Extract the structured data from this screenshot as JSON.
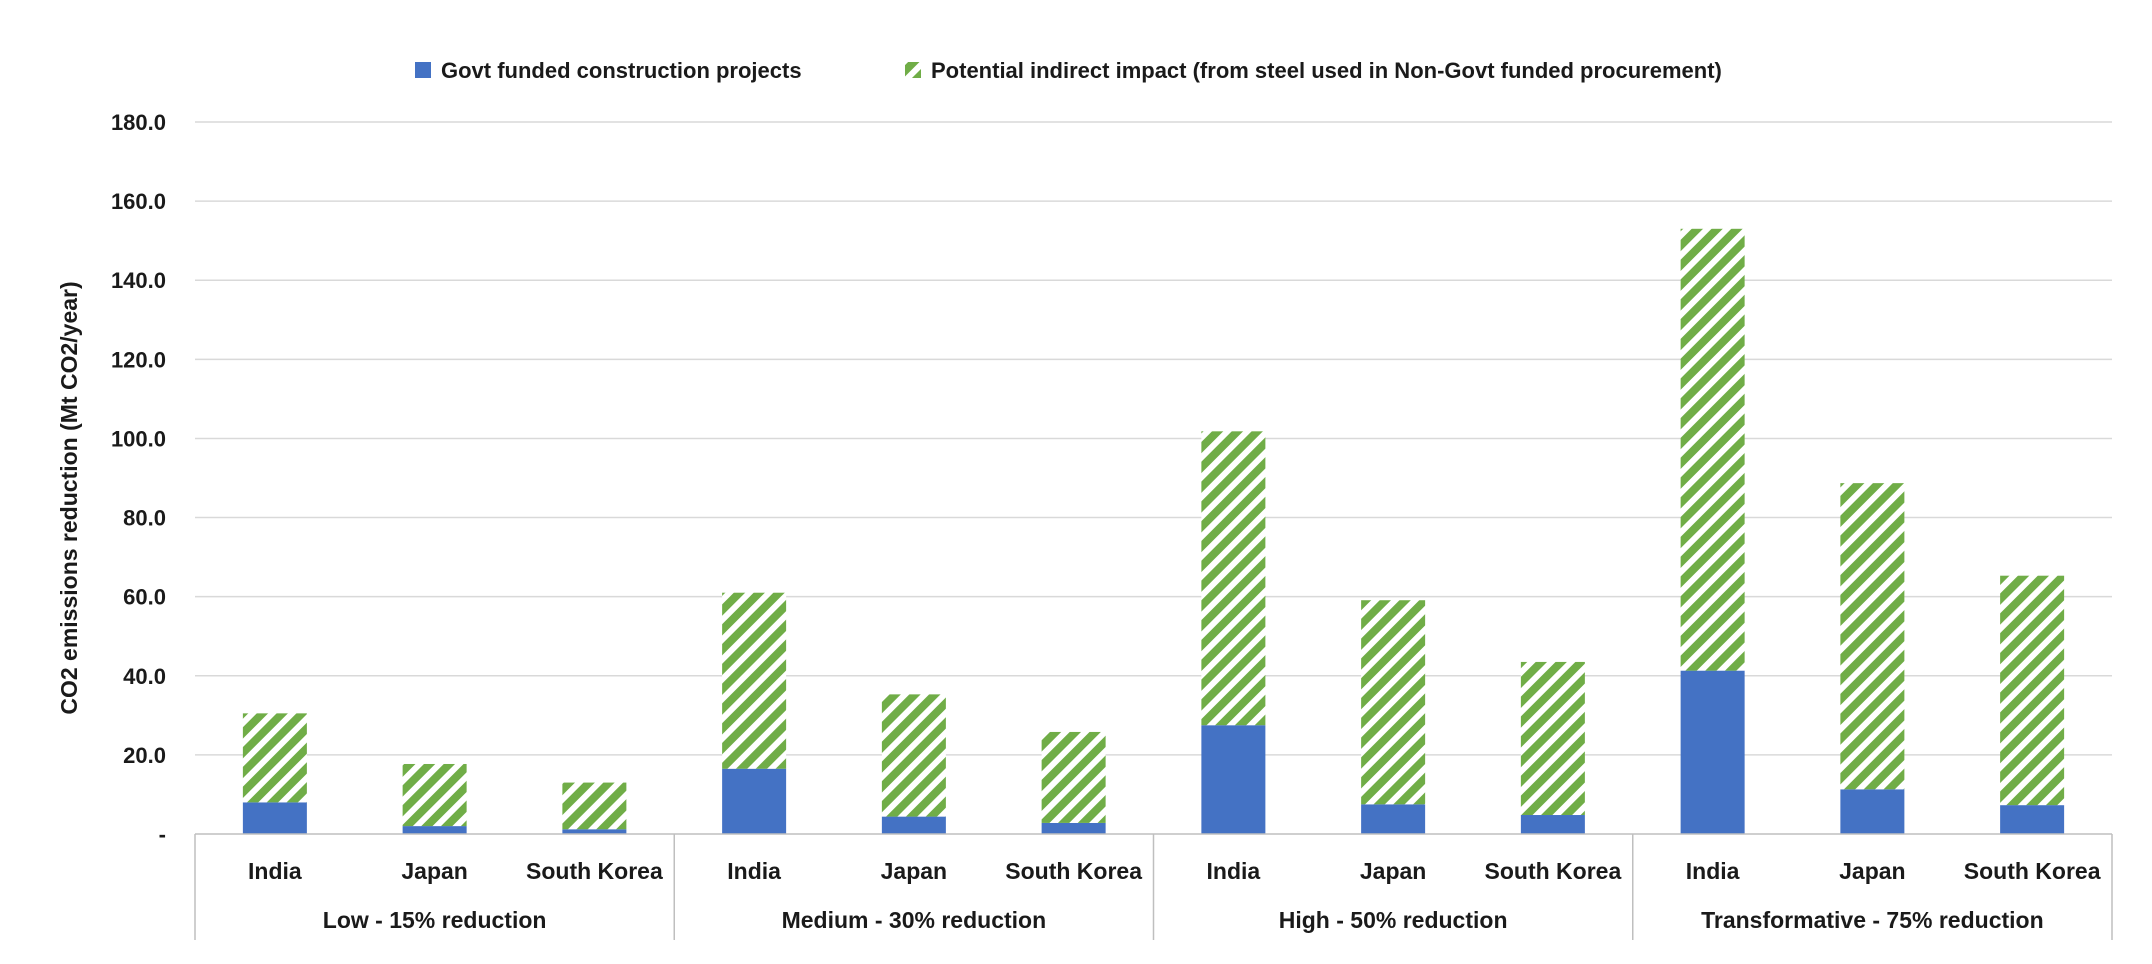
{
  "chart_data": {
    "type": "bar",
    "stacked": true,
    "title": "",
    "xlabel": "",
    "ylabel": "CO2 emissions reduction (Mt CO2/year)",
    "ylim": [
      0,
      180
    ],
    "yticks": [
      0,
      20,
      40,
      60,
      80,
      100,
      120,
      140,
      160,
      180
    ],
    "ytick_labels": [
      "-",
      "20.0",
      "40.0",
      "60.0",
      "80.0",
      "100.0",
      "120.0",
      "140.0",
      "160.0",
      "180.0"
    ],
    "legend_position": "top-center",
    "grid": true,
    "groups": [
      {
        "label": "Low - 15% reduction",
        "categories": [
          "India",
          "Japan",
          "South Korea"
        ]
      },
      {
        "label": "Medium - 30% reduction",
        "categories": [
          "India",
          "Japan",
          "South Korea"
        ]
      },
      {
        "label": "High - 50% reduction",
        "categories": [
          "India",
          "Japan",
          "South Korea"
        ]
      },
      {
        "label": "Transformative - 75% reduction",
        "categories": [
          "India",
          "Japan",
          "South Korea"
        ]
      }
    ],
    "series": [
      {
        "name": "Govt funded construction projects",
        "color": "#4472c4",
        "pattern": "solid",
        "values": [
          8.0,
          2.0,
          1.2,
          16.5,
          4.4,
          2.8,
          27.5,
          7.5,
          4.8,
          41.3,
          11.3,
          7.3
        ]
      },
      {
        "name": "Potential indirect impact (from steel used in Non-Govt funded procurement)",
        "color": "#70ad47",
        "pattern": "diagonal-stripes",
        "values": [
          22.5,
          15.7,
          11.8,
          44.5,
          30.9,
          23.0,
          74.3,
          51.6,
          38.7,
          111.7,
          77.4,
          58.0
        ]
      }
    ]
  }
}
